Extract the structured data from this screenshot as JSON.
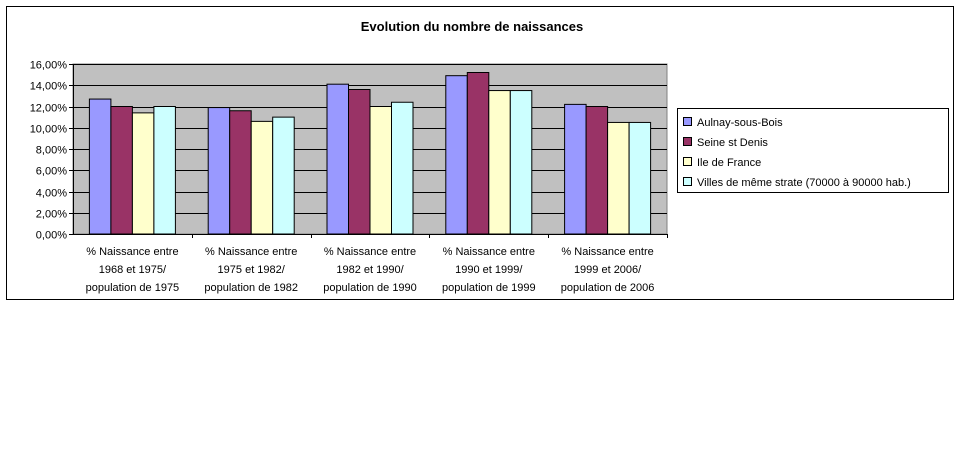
{
  "colors": {
    "plot_background": "#c0c0c0",
    "gridline": "#000000",
    "bar_outline": "#000000"
  },
  "chart_data": {
    "type": "bar",
    "title": "Evolution du nombre de naissances",
    "xlabel": "",
    "ylabel": "",
    "ylim": [
      0,
      16
    ],
    "y_ticks": [
      "0,00%",
      "2,00%",
      "4,00%",
      "6,00%",
      "8,00%",
      "10,00%",
      "12,00%",
      "14,00%",
      "16,00%"
    ],
    "grid": true,
    "legend_position": "right",
    "categories": [
      [
        "% Naissance entre",
        "1968 et 1975/",
        "population de 1975"
      ],
      [
        "% Naissance entre",
        "1975 et 1982/",
        "population de 1982"
      ],
      [
        "% Naissance entre",
        "1982 et 1990/",
        "population de 1990"
      ],
      [
        "% Naissance entre",
        "1990 et 1999/",
        "population de 1999"
      ],
      [
        "% Naissance entre",
        "1999 et 2006/",
        "population de 2006"
      ]
    ],
    "series": [
      {
        "name": "Aulnay-sous-Bois",
        "color": "#9999ff",
        "values": [
          12.7,
          11.9,
          14.1,
          14.9,
          12.2
        ]
      },
      {
        "name": "Seine st Denis",
        "color": "#993366",
        "values": [
          12.0,
          11.6,
          13.6,
          15.2,
          12.0
        ]
      },
      {
        "name": "Ile de France",
        "color": "#ffffcc",
        "values": [
          11.4,
          10.6,
          12.0,
          13.5,
          10.5
        ]
      },
      {
        "name": "Villes de même strate (70000 à 90000 hab.)",
        "color": "#ccffff",
        "values": [
          12.0,
          11.0,
          12.4,
          13.5,
          10.5
        ]
      }
    ]
  }
}
